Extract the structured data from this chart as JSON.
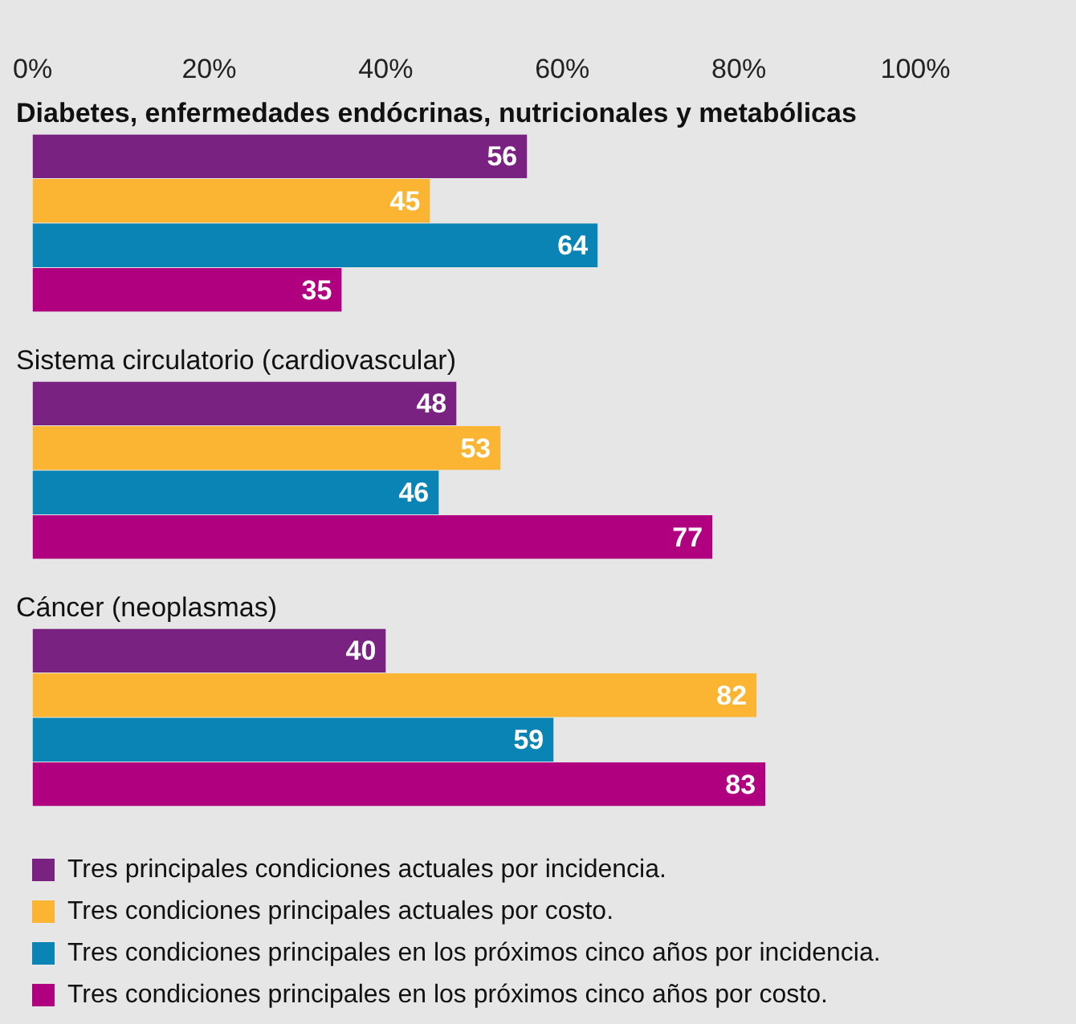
{
  "chart_data": {
    "type": "bar",
    "orientation": "horizontal",
    "categories": [
      "Diabetes, enfermedades endócrinas, nutricionales y metabólicas",
      "Sistema circulatorio (cardiovascular)",
      "Cáncer (neoplasmas)"
    ],
    "series": [
      {
        "name": "Tres principales condiciones actuales por incidencia.",
        "color": "#7a2282",
        "values": [
          56,
          48,
          40
        ]
      },
      {
        "name": "Tres condiciones principales actuales por costo.",
        "color": "#fbb532",
        "values": [
          45,
          53,
          82
        ]
      },
      {
        "name": "Tres condiciones principales en los próximos cinco años por incidencia.",
        "color": "#0a84b4",
        "values": [
          64,
          46,
          59
        ]
      },
      {
        "name": "Tres condiciones principales en los próximos cinco años por costo.",
        "color": "#b0007f",
        "values": [
          35,
          77,
          83
        ]
      }
    ],
    "xlim": [
      0,
      100
    ],
    "xticks": [
      {
        "value": 0,
        "label": "0%"
      },
      {
        "value": 20,
        "label": "20%"
      },
      {
        "value": 40,
        "label": "40%"
      },
      {
        "value": 60,
        "label": "60%"
      },
      {
        "value": 80,
        "label": "80%"
      },
      {
        "value": 100,
        "label": "100%"
      }
    ],
    "data_labels": true,
    "grid": false,
    "legend": "bottom"
  }
}
